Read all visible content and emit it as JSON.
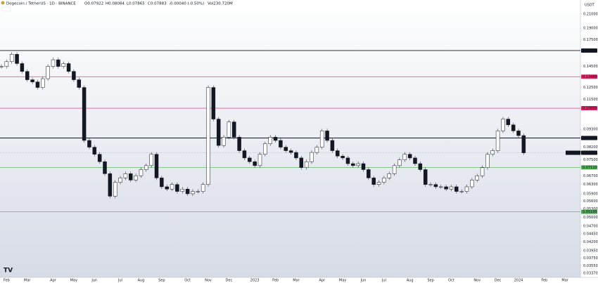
{
  "chart_data": {
    "type": "candlestick",
    "title": "Dogecoin / TetherUS · 1D · BINANCE",
    "ohlc_header": [
      "O0.07922",
      "H0.08084",
      "L0.07865",
      "C0.07883",
      "-0.00040 (-0.50%)",
      "Vol230.720M"
    ],
    "currency": "USDT",
    "symbol": "DOGEUSDT",
    "last": {
      "value": 0.07883,
      "label": "0.07883"
    },
    "log_scale": true,
    "up_color": "#ffffff",
    "down_color": "#131722",
    "categories": [
      null,
      "Feb",
      null,
      null,
      null,
      "Mar",
      null,
      null,
      null,
      null,
      "Apr",
      null,
      null,
      null,
      "May",
      null,
      null,
      null,
      "Jun",
      null,
      null,
      null,
      null,
      "Jul",
      null,
      null,
      null,
      "Aug",
      null,
      null,
      null,
      "Sep",
      null,
      null,
      null,
      null,
      "Oct",
      null,
      null,
      null,
      "Nov",
      null,
      null,
      null,
      "Dec",
      null,
      null,
      null,
      null,
      "2023",
      null,
      null,
      null,
      "Feb",
      null,
      null,
      null,
      "Mar",
      null,
      null,
      null,
      null,
      "Apr",
      null,
      null,
      null,
      "May",
      null,
      null,
      null,
      "Jun",
      null,
      null,
      null,
      "Jul",
      null,
      null,
      null,
      null,
      "Aug",
      null,
      null,
      null,
      "Sep",
      null,
      null,
      null,
      "Oct",
      null,
      null,
      null,
      null,
      "Nov",
      null,
      null,
      null,
      "Dec",
      null,
      null,
      null,
      "2024",
      null,
      null,
      null,
      null,
      "Feb",
      null,
      null,
      null,
      "Mar"
    ],
    "values": [
      0.145,
      0.15,
      0.158,
      0.148,
      0.14,
      0.132,
      0.13,
      0.125,
      0.133,
      0.145,
      0.152,
      0.145,
      0.148,
      0.14,
      0.132,
      0.125,
      0.086,
      0.082,
      0.078,
      0.074,
      0.068,
      0.058,
      0.064,
      0.066,
      0.068,
      0.065,
      0.067,
      0.07,
      0.072,
      0.078,
      0.066,
      0.062,
      0.061,
      0.063,
      0.06,
      0.061,
      0.059,
      0.06,
      0.06,
      0.063,
      0.125,
      0.1,
      0.083,
      0.088,
      0.098,
      0.088,
      0.08,
      0.076,
      0.074,
      0.072,
      0.078,
      0.084,
      0.088,
      0.086,
      0.082,
      0.08,
      0.079,
      0.076,
      0.071,
      0.074,
      0.079,
      0.082,
      0.092,
      0.086,
      0.08,
      0.077,
      0.076,
      0.073,
      0.072,
      0.073,
      0.07,
      0.066,
      0.063,
      0.064,
      0.066,
      0.068,
      0.072,
      0.075,
      0.078,
      0.076,
      0.073,
      0.07,
      0.063,
      0.063,
      0.062,
      0.062,
      0.061,
      0.062,
      0.06,
      0.06,
      0.062,
      0.065,
      0.067,
      0.071,
      0.078,
      0.08,
      0.092,
      0.1,
      0.096,
      0.092,
      0.089,
      0.0788,
      null,
      null,
      null,
      null,
      null,
      null,
      null,
      null
    ],
    "ylim": [
      0.0327,
      0.2318
    ],
    "yticks": [
      {
        "value": 0.21,
        "label": "0.21000"
      },
      {
        "value": 0.19,
        "label": "0.19000"
      },
      {
        "value": 0.175,
        "label": "0.17500"
      },
      {
        "value": 0.145,
        "label": "0.14500"
      },
      {
        "value": 0.125,
        "label": "0.12500"
      },
      {
        "value": 0.115,
        "label": "0.11500"
      },
      {
        "value": 0.093,
        "label": "0.09300"
      },
      {
        "value": 0.082,
        "label": "0.08200"
      },
      {
        "value": 0.075,
        "label": "0.07500"
      },
      {
        "value": 0.067,
        "label": "0.06700"
      },
      {
        "value": 0.063,
        "label": "0.06300"
      },
      {
        "value": 0.059,
        "label": "0.05900"
      },
      {
        "value": 0.056,
        "label": "0.05600"
      },
      {
        "value": 0.053,
        "label": "0.05300"
      },
      {
        "value": 0.05,
        "label": "0.05000"
      },
      {
        "value": 0.047,
        "label": "0.04700"
      },
      {
        "value": 0.0445,
        "label": "0.04450"
      },
      {
        "value": 0.042,
        "label": "0.04200"
      },
      {
        "value": 0.0395,
        "label": "0.03950"
      },
      {
        "value": 0.0375,
        "label": "0.03750"
      },
      {
        "value": 0.0355,
        "label": "0.03550"
      },
      {
        "value": 0.0337,
        "label": "0.03370"
      }
    ],
    "levels": [
      {
        "value": 0.16222,
        "label": "0.16222",
        "color": "#131722"
      },
      {
        "value": 0.13489,
        "label": "0.13489",
        "color": "#e91e63"
      },
      {
        "value": 0.108,
        "label": "0.10800",
        "color": "#e91e63"
      },
      {
        "value": 0.0875,
        "label": "0.08750",
        "color": "#131722"
      },
      {
        "value": 0.0711,
        "label": "0.07110",
        "color": "#4caf50"
      },
      {
        "value": 0.05195,
        "label": "0.05195",
        "color": "#4caf50"
      }
    ]
  }
}
